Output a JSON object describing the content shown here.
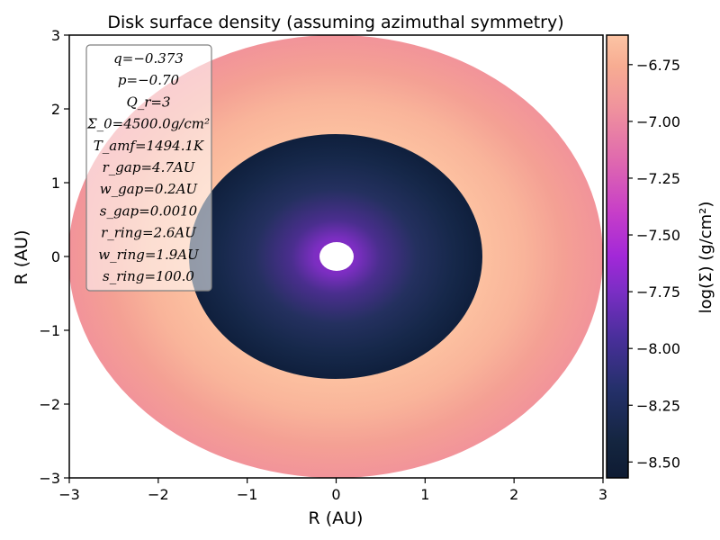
{
  "chart_data": {
    "type": "heatmap",
    "title": "Disk surface density (assuming azimuthal symmetry)",
    "xlabel": "R (AU)",
    "ylabel": "R (AU)",
    "xlim": [
      -3,
      3
    ],
    "ylim": [
      -3,
      3
    ],
    "x_ticks": [
      -3,
      -2,
      -1,
      0,
      1,
      2,
      3
    ],
    "y_ticks": [
      -3,
      -2,
      -1,
      0,
      1,
      2,
      3
    ],
    "x_tick_labels": [
      "−3",
      "−2",
      "−1",
      "0",
      "1",
      "2",
      "3"
    ],
    "y_tick_labels": [
      "−3",
      "−2",
      "−1",
      "0",
      "1",
      "2",
      "3"
    ],
    "colorbar": {
      "label": "log(Σ) (g/cm²)",
      "range": [
        -8.57,
        -6.62
      ],
      "ticks": [
        -8.5,
        -8.25,
        -8.0,
        -7.75,
        -7.5,
        -7.25,
        -7.0,
        -6.75
      ],
      "tick_labels": [
        "−8.50",
        "−8.25",
        "−8.00",
        "−7.75",
        "−7.50",
        "−7.25",
        "−7.00",
        "−6.75"
      ],
      "colormap": [
        "#000004",
        "#0f1a3a",
        "#2a2a6e",
        "#5b2a9e",
        "#9a29c4",
        "#c93fc7",
        "#e06aae",
        "#f0939a",
        "#f7a98f",
        "#fcc0a0"
      ]
    },
    "disk": {
      "inner_hole_radius": 0.2,
      "gap_edge_radius": 1.65,
      "outer_radius": 3.0,
      "profile": [
        {
          "r": 0.0,
          "value": -7.88
        },
        {
          "r": 0.3,
          "value": -7.95
        },
        {
          "r": 0.6,
          "value": -8.15
        },
        {
          "r": 1.0,
          "value": -8.35
        },
        {
          "r": 1.65,
          "value": -8.52
        },
        {
          "r": 1.66,
          "value": -6.78
        },
        {
          "r": 2.0,
          "value": -6.75
        },
        {
          "r": 2.6,
          "value": -6.95
        },
        {
          "r": 3.0,
          "value": -7.05
        }
      ]
    },
    "legend_lines": [
      "q=−0.373",
      "p=−0.70",
      "Q_r=3",
      "Σ_0=4500.0g/cm²",
      "T_amf=1494.1K",
      "r_gap=4.7AU",
      "w_gap=0.2AU",
      "s_gap=0.0010",
      "r_ring=2.6AU",
      "w_ring=1.9AU",
      "s_ring=100.0"
    ],
    "legend_placement": "top-left",
    "grid": false
  }
}
